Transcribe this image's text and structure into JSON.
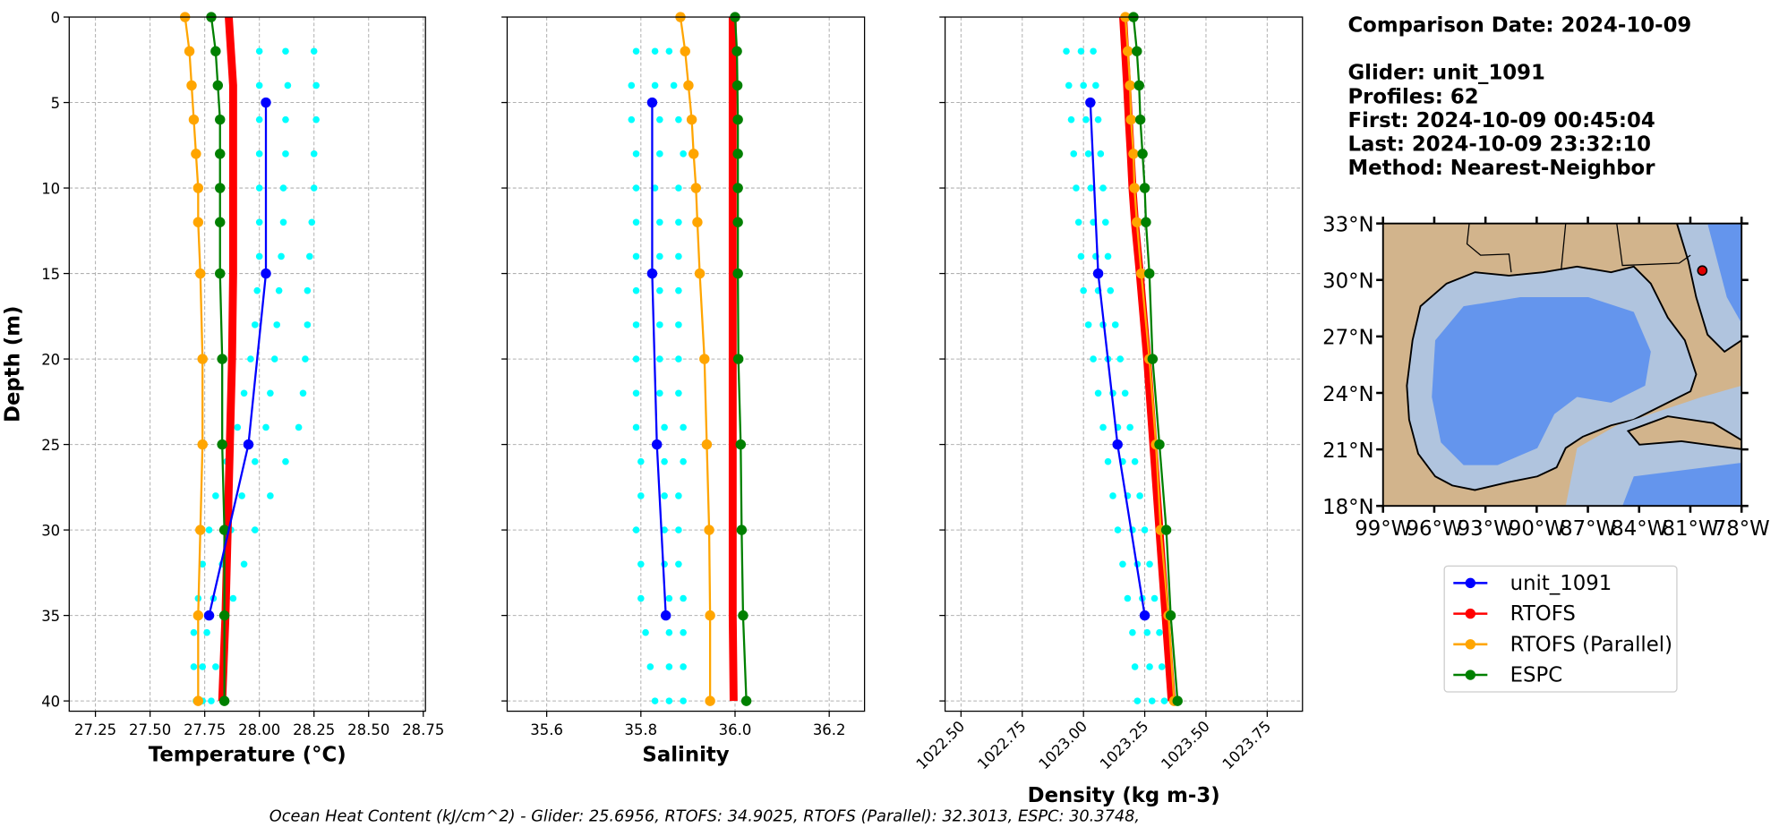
{
  "chart_data": [
    {
      "type": "line",
      "xlabel": "Temperature (°C)",
      "ylabel": "Depth (m)",
      "xlim": [
        27.13,
        28.76
      ],
      "xticks": [
        27.25,
        {
          "value": 27.5,
          "label": "27.50"
        },
        27.75,
        {
          "value": 28,
          "label": "28.00"
        },
        28.25,
        {
          "value": 28.5,
          "label": "28.50"
        },
        28.75
      ],
      "ylim": [
        0,
        40.6
      ],
      "yticks": [
        0,
        5,
        10,
        15,
        20,
        25,
        30,
        35,
        40
      ],
      "y_inverted": true,
      "ytick_labels": true,
      "grid": true,
      "depth": [
        0,
        2,
        4,
        6,
        8,
        10,
        12,
        15,
        20,
        25,
        30,
        35,
        40
      ],
      "scatter": {
        "color": "#00ffff",
        "depth": [
          2,
          4,
          6,
          8,
          10,
          12,
          14,
          16,
          18,
          20,
          22,
          24,
          26,
          28,
          30,
          32,
          34,
          36,
          38,
          40
        ],
        "values": [
          [
            28.0,
            28.12,
            28.25
          ],
          [
            28.0,
            28.13,
            28.26
          ],
          [
            28.0,
            28.12,
            28.26
          ],
          [
            28.0,
            28.12,
            28.25
          ],
          [
            28.0,
            28.11,
            28.25
          ],
          [
            28.0,
            28.11,
            28.24
          ],
          [
            28.0,
            28.1,
            28.23
          ],
          [
            27.99,
            28.09,
            28.22
          ],
          [
            27.98,
            28.08,
            28.22
          ],
          [
            27.96,
            28.07,
            28.21
          ],
          [
            27.93,
            28.05,
            28.2
          ],
          [
            27.9,
            28.03,
            28.18
          ],
          [
            27.85,
            27.98,
            28.12
          ],
          [
            27.8,
            27.92,
            28.05
          ],
          [
            27.77,
            27.87,
            27.98
          ],
          [
            27.74,
            27.83,
            27.93
          ],
          [
            27.72,
            27.79,
            27.88
          ],
          [
            27.7,
            27.76,
            27.84
          ],
          [
            27.7,
            27.74,
            27.8
          ],
          [
            27.71,
            27.74,
            27.78
          ]
        ]
      },
      "series": [
        {
          "name": "unit_1091",
          "color": "#0000ff",
          "depth": [
            5,
            15,
            25,
            35
          ],
          "values": [
            28.03,
            28.03,
            27.95,
            27.77
          ]
        },
        {
          "name": "RTOFS",
          "color": "#ff0000",
          "linewidth": 7,
          "markers": false,
          "values": [
            27.86,
            27.87,
            27.88,
            27.88,
            27.88,
            27.88,
            27.88,
            27.88,
            27.875,
            27.865,
            27.855,
            27.845,
            27.83
          ]
        },
        {
          "name": "RTOFS (Parallel)",
          "color": "#ffa500",
          "values": [
            27.66,
            27.68,
            27.69,
            27.7,
            27.71,
            27.72,
            27.72,
            27.73,
            27.74,
            27.74,
            27.73,
            27.72,
            27.72
          ]
        },
        {
          "name": "ESPC",
          "color": "#008000",
          "values": [
            27.78,
            27.8,
            27.81,
            27.82,
            27.82,
            27.82,
            27.82,
            27.82,
            27.83,
            27.83,
            27.84,
            27.84,
            27.84
          ]
        }
      ]
    },
    {
      "type": "line",
      "xlabel": "Salinity",
      "xlim": [
        35.516,
        36.275
      ],
      "xticks": [
        35.6,
        35.8,
        {
          "value": 36,
          "label": "36.0"
        },
        36.2
      ],
      "ylim": [
        0,
        40.6
      ],
      "yticks": [
        0,
        5,
        10,
        15,
        20,
        25,
        30,
        35,
        40
      ],
      "y_inverted": true,
      "ytick_labels": false,
      "grid": true,
      "depth": [
        0,
        2,
        4,
        6,
        8,
        10,
        12,
        15,
        20,
        25,
        30,
        35,
        40
      ],
      "scatter": {
        "color": "#00ffff",
        "depth": [
          2,
          4,
          6,
          8,
          10,
          12,
          14,
          16,
          18,
          20,
          22,
          24,
          26,
          28,
          30,
          32,
          34,
          36,
          38,
          40
        ],
        "values": [
          [
            35.79,
            35.83,
            35.86
          ],
          [
            35.78,
            35.83,
            35.87
          ],
          [
            35.78,
            35.84,
            35.88
          ],
          [
            35.79,
            35.84,
            35.89
          ],
          [
            35.79,
            35.83,
            35.88
          ],
          [
            35.79,
            35.84,
            35.88
          ],
          [
            35.79,
            35.84,
            35.88
          ],
          [
            35.79,
            35.84,
            35.88
          ],
          [
            35.79,
            35.84,
            35.88
          ],
          [
            35.79,
            35.84,
            35.88
          ],
          [
            35.79,
            35.84,
            35.88
          ],
          [
            35.79,
            35.85,
            35.89
          ],
          [
            35.8,
            35.85,
            35.89
          ],
          [
            35.8,
            35.85,
            35.88
          ],
          [
            35.79,
            35.85,
            35.88
          ],
          [
            35.8,
            35.85,
            35.88
          ],
          [
            35.8,
            35.86,
            35.89
          ],
          [
            35.81,
            35.86,
            35.89
          ],
          [
            35.82,
            35.86,
            35.89
          ],
          [
            35.83,
            35.86,
            35.89
          ]
        ]
      },
      "series": [
        {
          "name": "unit_1091",
          "color": "#0000ff",
          "depth": [
            5,
            15,
            25,
            35
          ],
          "values": [
            35.824,
            35.824,
            35.834,
            35.853
          ]
        },
        {
          "name": "RTOFS",
          "color": "#ff0000",
          "linewidth": 7,
          "markers": false,
          "values": [
            35.995,
            35.995,
            35.995,
            35.995,
            35.995,
            35.995,
            35.995,
            35.995,
            35.995,
            35.995,
            35.995,
            35.995,
            35.997
          ]
        },
        {
          "name": "RTOFS (Parallel)",
          "color": "#ffa500",
          "values": [
            35.884,
            35.894,
            35.901,
            35.908,
            35.912,
            35.917,
            35.92,
            35.925,
            35.935,
            35.94,
            35.945,
            35.947,
            35.947
          ]
        },
        {
          "name": "ESPC",
          "color": "#008000",
          "values": [
            36.0,
            36.004,
            36.005,
            36.006,
            36.006,
            36.006,
            36.006,
            36.006,
            36.007,
            36.012,
            36.014,
            36.017,
            36.024
          ]
        }
      ]
    },
    {
      "type": "line",
      "xlabel": "Density (kg m-3)",
      "xlim": [
        1022.435,
        1023.894
      ],
      "xticks": [
        {
          "value": 1022.5,
          "label": "1022.50"
        },
        1022.75,
        {
          "value": 1023,
          "label": "1023.00"
        },
        1023.25,
        {
          "value": 1023.5,
          "label": "1023.50"
        },
        1023.75
      ],
      "xtick_rotation": 45,
      "ylim": [
        0,
        40.6
      ],
      "yticks": [
        0,
        5,
        10,
        15,
        20,
        25,
        30,
        35,
        40
      ],
      "y_inverted": true,
      "ytick_labels": false,
      "grid": true,
      "depth": [
        0,
        2,
        4,
        6,
        8,
        10,
        12,
        15,
        20,
        25,
        30,
        35,
        40
      ],
      "scatter": {
        "color": "#00ffff",
        "depth": [
          2,
          4,
          6,
          8,
          10,
          12,
          14,
          16,
          18,
          20,
          22,
          24,
          26,
          28,
          30,
          32,
          34,
          36,
          38,
          40
        ],
        "values": [
          [
            1022.93,
            1022.99,
            1023.04
          ],
          [
            1022.94,
            1023.0,
            1023.05
          ],
          [
            1022.95,
            1023.01,
            1023.06
          ],
          [
            1022.96,
            1023.02,
            1023.07
          ],
          [
            1022.97,
            1023.03,
            1023.08
          ],
          [
            1022.98,
            1023.04,
            1023.09
          ],
          [
            1022.99,
            1023.05,
            1023.1
          ],
          [
            1023.0,
            1023.06,
            1023.11
          ],
          [
            1023.02,
            1023.08,
            1023.13
          ],
          [
            1023.04,
            1023.1,
            1023.15
          ],
          [
            1023.06,
            1023.12,
            1023.17
          ],
          [
            1023.08,
            1023.14,
            1023.19
          ],
          [
            1023.1,
            1023.16,
            1023.21
          ],
          [
            1023.12,
            1023.18,
            1023.23
          ],
          [
            1023.14,
            1023.2,
            1023.25
          ],
          [
            1023.16,
            1023.22,
            1023.27
          ],
          [
            1023.18,
            1023.24,
            1023.29
          ],
          [
            1023.2,
            1023.26,
            1023.31
          ],
          [
            1023.21,
            1023.27,
            1023.32
          ],
          [
            1023.22,
            1023.28,
            1023.33
          ]
        ]
      },
      "series": [
        {
          "name": "unit_1091",
          "color": "#0000ff",
          "depth": [
            5,
            15,
            25,
            35
          ],
          "values": [
            1023.028,
            1023.06,
            1023.139,
            1023.25
          ]
        },
        {
          "name": "RTOFS",
          "color": "#ff0000",
          "linewidth": 7,
          "markers": false,
          "values": [
            1023.162,
            1023.17,
            1023.178,
            1023.185,
            1023.193,
            1023.2,
            1023.21,
            1023.23,
            1023.26,
            1023.285,
            1023.31,
            1023.335,
            1023.36
          ]
        },
        {
          "name": "RTOFS (Parallel)",
          "color": "#ffa500",
          "values": [
            1023.171,
            1023.181,
            1023.19,
            1023.194,
            1023.204,
            1023.208,
            1023.218,
            1023.236,
            1023.269,
            1023.296,
            1023.315,
            1023.347,
            1023.37
          ]
        },
        {
          "name": "ESPC",
          "color": "#008000",
          "values": [
            1023.204,
            1023.218,
            1023.227,
            1023.232,
            1023.241,
            1023.25,
            1023.255,
            1023.269,
            1023.282,
            1023.31,
            1023.338,
            1023.356,
            1023.384
          ]
        }
      ]
    },
    {
      "type": "map",
      "xlim": [
        -99,
        -78
      ],
      "ylim": [
        18,
        33
      ],
      "xticks": [
        {
          "value": -99,
          "label": "99°W"
        },
        {
          "value": -96,
          "label": "96°W"
        },
        {
          "value": -93,
          "label": "93°W"
        },
        {
          "value": -90,
          "label": "90°W"
        },
        {
          "value": -87,
          "label": "87°W"
        },
        {
          "value": -84,
          "label": "84°W"
        },
        {
          "value": -81,
          "label": "81°W"
        },
        {
          "value": -78,
          "label": "78°W"
        }
      ],
      "yticks": [
        {
          "value": 18,
          "label": "18°N"
        },
        {
          "value": 21,
          "label": "21°N"
        },
        {
          "value": 24,
          "label": "24°N"
        },
        {
          "value": 27,
          "label": "27°N"
        },
        {
          "value": 30,
          "label": "30°N"
        },
        {
          "value": 33,
          "label": "33°N"
        }
      ],
      "glider_location": {
        "lon": -80.3,
        "lat": 30.5,
        "color": "#e00000"
      }
    }
  ],
  "info": [
    "Comparison Date: 2024-10-09",
    "Glider: unit_1091",
    "Profiles: 62",
    "First: 2024-10-09 00:45:04",
    "Last: 2024-10-09 23:32:10",
    "Method: Nearest-Neighbor"
  ],
  "footer": "Ocean Heat Content (kJ/cm^2) - Glider: 25.6956,  RTOFS: 34.9025,  RTOFS (Parallel): 32.3013,  ESPC: 30.3748,"
}
